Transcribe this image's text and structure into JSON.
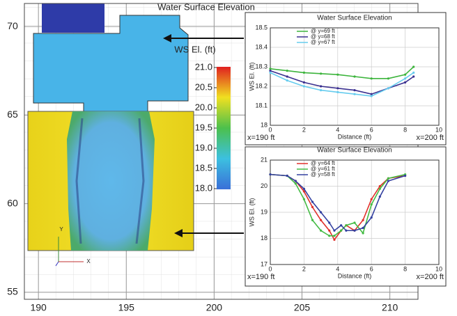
{
  "chart_data": [
    {
      "type": "map",
      "title": "Water Surface Elevation",
      "xlim": [
        189.2,
        211.6
      ],
      "ylim": [
        54.6,
        71.3
      ],
      "xticks": [
        190,
        195,
        200,
        205,
        210
      ],
      "yticks": [
        55,
        60,
        65,
        70
      ],
      "colorbar": {
        "label": "WS El. (ft)",
        "lim": [
          18,
          21
        ],
        "ticks": [
          {
            "value": 18,
            "label": "18.0"
          },
          {
            "value": 18.5,
            "label": "18.5"
          },
          {
            "value": 19,
            "label": "19.0"
          },
          {
            "value": 19.5,
            "label": "19.5"
          },
          {
            "value": 20,
            "label": "20.0"
          },
          {
            "value": 20.5,
            "label": "20.5"
          },
          {
            "value": 21,
            "label": "21.0"
          }
        ]
      },
      "triad_labels": [
        "Y",
        "X"
      ]
    },
    {
      "type": "line",
      "title": "Water Surface Elevation",
      "x_label": "Distance (ft)",
      "y_label": "WS El. (ft)",
      "xlim": [
        0,
        10
      ],
      "ylim": [
        18,
        18.5
      ],
      "xticks": [
        0,
        2,
        4,
        6,
        8,
        10
      ],
      "yticks": [
        18,
        18.1,
        18.2,
        18.3,
        18.4,
        18.5
      ],
      "x": [
        0,
        1,
        2,
        3,
        4,
        5,
        6,
        7,
        8,
        8.5
      ],
      "series": [
        {
          "name": "@ y=69 ft",
          "color": "#3cb43c",
          "values": [
            18.29,
            18.28,
            18.27,
            18.265,
            18.26,
            18.25,
            18.24,
            18.24,
            18.26,
            18.3
          ]
        },
        {
          "name": "@ y=68 ft",
          "color": "#3a2f8f",
          "values": [
            18.28,
            18.25,
            18.22,
            18.2,
            18.19,
            18.18,
            18.16,
            18.19,
            18.22,
            18.25
          ]
        },
        {
          "name": "@ y=67 ft",
          "color": "#66ccee",
          "values": [
            18.27,
            18.23,
            18.2,
            18.18,
            18.17,
            18.16,
            18.15,
            18.19,
            18.24,
            18.27
          ]
        }
      ],
      "annotations": [
        "x=190 ft",
        "x=200 ft"
      ],
      "legend": "upper left"
    },
    {
      "type": "line",
      "title": "Water Surface Elevation",
      "x_label": "Distance (ft)",
      "y_label": "WS El. (ft)",
      "xlim": [
        0,
        10
      ],
      "ylim": [
        17,
        21
      ],
      "xticks": [
        0,
        2,
        4,
        6,
        8,
        10
      ],
      "yticks": [
        17,
        18,
        19,
        20,
        21
      ],
      "x": [
        0,
        1,
        1.5,
        2,
        2.5,
        3,
        3.5,
        3.8,
        4.2,
        4.5,
        5,
        5.5,
        6,
        6.5,
        7,
        8
      ],
      "series": [
        {
          "name": "@ y=64 ft",
          "color": "#e0302a",
          "values": [
            20.45,
            20.4,
            20.2,
            19.8,
            19.2,
            18.7,
            18.3,
            17.95,
            18.3,
            18.5,
            18.3,
            18.7,
            19.5,
            20.0,
            20.3,
            20.4
          ]
        },
        {
          "name": "@ y=61 ft",
          "color": "#44bb44",
          "values": [
            20.45,
            20.4,
            20.1,
            19.5,
            18.7,
            18.3,
            18.1,
            18.1,
            18.3,
            18.5,
            18.6,
            18.2,
            19.3,
            19.9,
            20.3,
            20.45
          ]
        },
        {
          "name": "@ y=58 ft",
          "color": "#3340a0",
          "values": [
            20.45,
            20.4,
            20.2,
            19.9,
            19.4,
            19.0,
            18.6,
            18.3,
            18.5,
            18.3,
            18.3,
            18.4,
            18.8,
            19.6,
            20.2,
            20.4
          ]
        }
      ],
      "annotations": [
        "x=190 ft",
        "x=200 ft"
      ],
      "legend": "upper left"
    }
  ]
}
